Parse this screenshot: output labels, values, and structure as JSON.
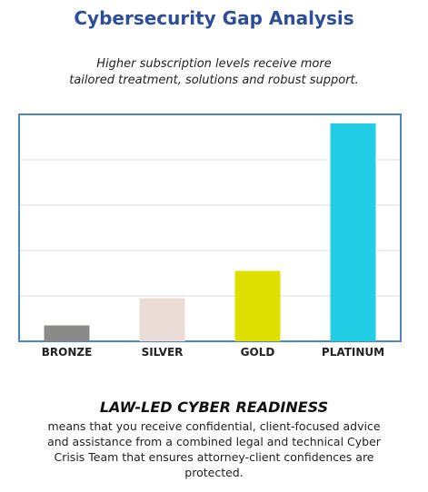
{
  "title": "Cybersecurity Gap Analysis",
  "subtitle_lines": [
    "Higher subscription levels receive more",
    "tailored treatment, solutions and robust support."
  ],
  "chart_data": {
    "type": "bar",
    "categories": [
      "BRONZE",
      "SILVER",
      "GOLD",
      "PLATINUM"
    ],
    "values": [
      0.35,
      0.95,
      1.55,
      4.8
    ],
    "colors": [
      "#8a8b88",
      "#eaddd8",
      "#dfe000",
      "#22cde6"
    ],
    "ylim": [
      0,
      5
    ],
    "grid": true,
    "frame_color": "#4a86c8",
    "title": "",
    "xlabel": "",
    "ylabel": ""
  },
  "section": {
    "heading": "LAW-LED CYBER READINESS",
    "body_lines": [
      "means that you receive confidential, client-focused advice",
      "and assistance from a combined legal and technical Cyber",
      "Crisis Team that ensures attorney-client confidences are",
      "protected."
    ]
  }
}
